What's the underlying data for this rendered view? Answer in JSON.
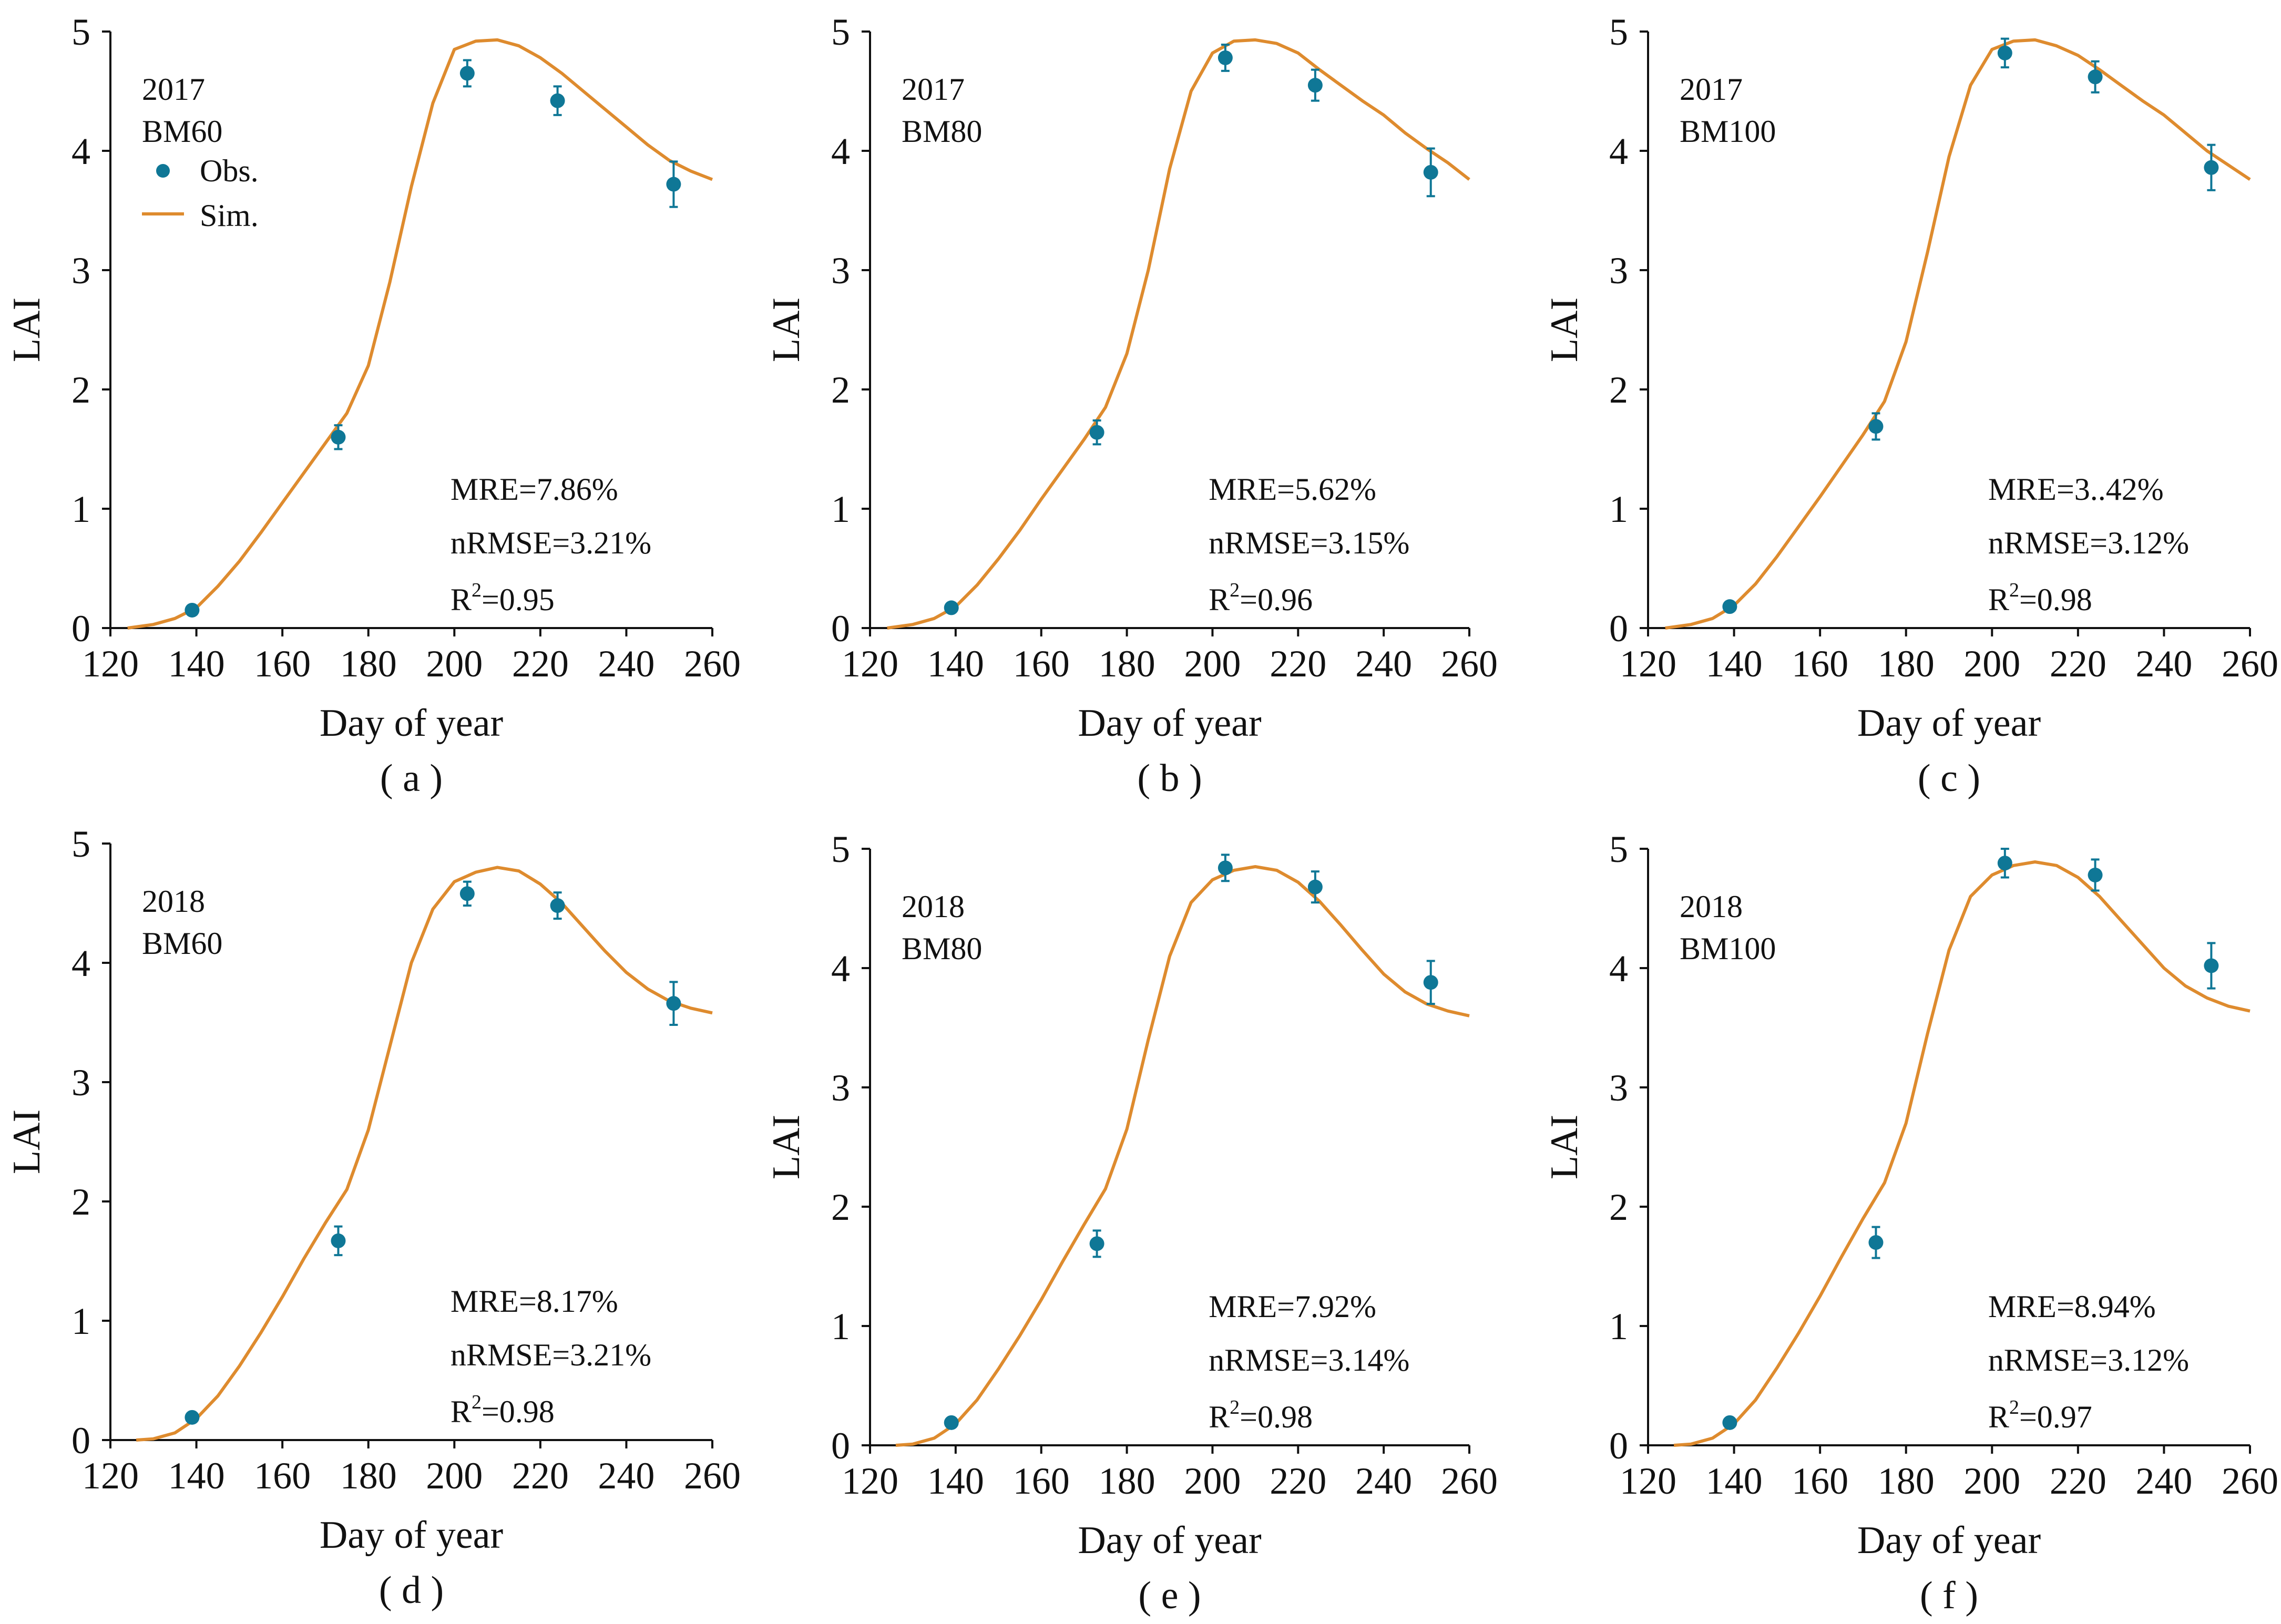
{
  "figure": {
    "panels": [
      {
        "id": "a",
        "caption": "( a )",
        "year_label": "2017",
        "treatment_label": "BM60",
        "mre": "MRE=7.86%",
        "nrmse": "nRMSE=3.21%",
        "r2_prefix": "R",
        "r2_sup": "2",
        "r2_value": "=0.95",
        "show_legend": true
      },
      {
        "id": "b",
        "caption": "( b )",
        "year_label": "2017",
        "treatment_label": "BM80",
        "mre": "MRE=5.62%",
        "nrmse": "nRMSE=3.15%",
        "r2_prefix": "R",
        "r2_sup": "2",
        "r2_value": "=0.96",
        "show_legend": false
      },
      {
        "id": "c",
        "caption": "( c )",
        "year_label": "2017",
        "treatment_label": "BM100",
        "mre": "MRE=3..42%",
        "nrmse": "nRMSE=3.12%",
        "r2_prefix": "R",
        "r2_sup": "2",
        "r2_value": "=0.98",
        "show_legend": false
      },
      {
        "id": "d",
        "caption": "( d )",
        "year_label": "2018",
        "treatment_label": "BM60",
        "mre": "MRE=8.17%",
        "nrmse": "nRMSE=3.21%",
        "r2_prefix": "R",
        "r2_sup": "2",
        "r2_value": "=0.98",
        "show_legend": false
      },
      {
        "id": "e",
        "caption": "( e )",
        "year_label": "2018",
        "treatment_label": "BM80",
        "mre": "MRE=7.92%",
        "nrmse": "nRMSE=3.14%",
        "r2_prefix": "R",
        "r2_sup": "2",
        "r2_value": "=0.98",
        "show_legend": false
      },
      {
        "id": "f",
        "caption": "( f )",
        "year_label": "2018",
        "treatment_label": "BM100",
        "mre": "MRE=8.94%",
        "nrmse": "nRMSE=3.12%",
        "r2_prefix": "R",
        "r2_sup": "2",
        "r2_value": "=0.97",
        "show_legend": false
      }
    ],
    "legend": {
      "obs_label": "Obs.",
      "sim_label": "Sim."
    },
    "colors": {
      "obs": "#0f7796",
      "sim": "#de8b2e",
      "axis": "#111111"
    }
  },
  "chart_data": [
    {
      "type": "scatter+line",
      "panel": "a",
      "title": "2017 BM60",
      "xlabel": "Day of year",
      "ylabel": "LAI",
      "xlim": [
        120,
        260
      ],
      "ylim": [
        0,
        5
      ],
      "xticks": [
        "120",
        "140",
        "160",
        "180",
        "200",
        "220",
        "240",
        "260"
      ],
      "yticks": [
        "0",
        "1",
        "2",
        "3",
        "4",
        "5"
      ],
      "series": [
        {
          "name": "Obs.",
          "x": [
            139,
            173,
            203,
            224,
            251
          ],
          "y": [
            0.15,
            1.6,
            4.65,
            4.42,
            3.72
          ],
          "err": [
            0.03,
            0.1,
            0.11,
            0.12,
            0.19
          ]
        },
        {
          "name": "Sim.",
          "x": [
            124,
            130,
            135,
            140,
            145,
            150,
            155,
            160,
            165,
            170,
            175,
            180,
            185,
            190,
            195,
            200,
            205,
            210,
            215,
            220,
            225,
            230,
            235,
            240,
            245,
            250,
            255,
            260
          ],
          "y": [
            0.0,
            0.03,
            0.08,
            0.17,
            0.35,
            0.56,
            0.8,
            1.05,
            1.3,
            1.55,
            1.8,
            2.2,
            2.9,
            3.7,
            4.4,
            4.85,
            4.92,
            4.93,
            4.88,
            4.78,
            4.65,
            4.5,
            4.35,
            4.2,
            4.05,
            3.92,
            3.83,
            3.76
          ]
        }
      ]
    },
    {
      "type": "scatter+line",
      "panel": "b",
      "title": "2017 BM80",
      "xlabel": "Day of year",
      "ylabel": "LAI",
      "xlim": [
        120,
        260
      ],
      "ylim": [
        0,
        5
      ],
      "xticks": [
        "120",
        "140",
        "160",
        "180",
        "200",
        "220",
        "240",
        "260"
      ],
      "yticks": [
        "0",
        "1",
        "2",
        "3",
        "4",
        "5"
      ],
      "series": [
        {
          "name": "Obs.",
          "x": [
            139,
            173,
            203,
            224,
            251
          ],
          "y": [
            0.17,
            1.64,
            4.78,
            4.55,
            3.82
          ],
          "err": [
            0.03,
            0.1,
            0.11,
            0.13,
            0.2
          ]
        },
        {
          "name": "Sim.",
          "x": [
            124,
            130,
            135,
            140,
            145,
            150,
            155,
            160,
            165,
            170,
            175,
            180,
            185,
            190,
            195,
            200,
            205,
            210,
            215,
            220,
            225,
            230,
            235,
            240,
            245,
            250,
            255,
            260
          ],
          "y": [
            0.0,
            0.03,
            0.08,
            0.18,
            0.36,
            0.58,
            0.82,
            1.08,
            1.33,
            1.58,
            1.85,
            2.3,
            3.0,
            3.85,
            4.5,
            4.82,
            4.92,
            4.93,
            4.9,
            4.82,
            4.68,
            4.55,
            4.42,
            4.3,
            4.15,
            4.02,
            3.9,
            3.76
          ]
        }
      ]
    },
    {
      "type": "scatter+line",
      "panel": "c",
      "title": "2017 BM100",
      "xlabel": "Day of year",
      "ylabel": "LAI",
      "xlim": [
        120,
        260
      ],
      "ylim": [
        0,
        5
      ],
      "xticks": [
        "120",
        "140",
        "160",
        "180",
        "200",
        "220",
        "240",
        "260"
      ],
      "yticks": [
        "0",
        "1",
        "2",
        "3",
        "4",
        "5"
      ],
      "series": [
        {
          "name": "Obs.",
          "x": [
            139,
            173,
            203,
            224,
            251
          ],
          "y": [
            0.18,
            1.69,
            4.82,
            4.62,
            3.86
          ],
          "err": [
            0.03,
            0.11,
            0.12,
            0.13,
            0.19
          ]
        },
        {
          "name": "Sim.",
          "x": [
            124,
            130,
            135,
            140,
            145,
            150,
            155,
            160,
            165,
            170,
            175,
            180,
            185,
            190,
            195,
            200,
            205,
            210,
            215,
            220,
            225,
            230,
            235,
            240,
            245,
            250,
            255,
            260
          ],
          "y": [
            0.0,
            0.03,
            0.08,
            0.19,
            0.37,
            0.6,
            0.85,
            1.1,
            1.36,
            1.62,
            1.9,
            2.4,
            3.15,
            3.95,
            4.55,
            4.85,
            4.92,
            4.93,
            4.88,
            4.8,
            4.68,
            4.55,
            4.42,
            4.3,
            4.15,
            4.0,
            3.88,
            3.76
          ]
        }
      ]
    },
    {
      "type": "scatter+line",
      "panel": "d",
      "title": "2018 BM60",
      "xlabel": "Day of year",
      "ylabel": "LAI",
      "xlim": [
        120,
        260
      ],
      "ylim": [
        0,
        5
      ],
      "xticks": [
        "120",
        "140",
        "160",
        "180",
        "200",
        "220",
        "240",
        "260"
      ],
      "yticks": [
        "0",
        "1",
        "2",
        "3",
        "4",
        "5"
      ],
      "series": [
        {
          "name": "Obs.",
          "x": [
            139,
            173,
            203,
            224,
            251
          ],
          "y": [
            0.19,
            1.67,
            4.58,
            4.48,
            3.66
          ],
          "err": [
            0.03,
            0.12,
            0.1,
            0.11,
            0.18
          ]
        },
        {
          "name": "Sim.",
          "x": [
            126,
            130,
            135,
            140,
            145,
            150,
            155,
            160,
            165,
            170,
            175,
            180,
            185,
            190,
            195,
            200,
            205,
            210,
            215,
            220,
            225,
            230,
            235,
            240,
            245,
            250,
            255,
            260
          ],
          "y": [
            0.0,
            0.01,
            0.06,
            0.18,
            0.37,
            0.62,
            0.9,
            1.2,
            1.52,
            1.82,
            2.1,
            2.6,
            3.3,
            4.0,
            4.45,
            4.68,
            4.76,
            4.8,
            4.77,
            4.66,
            4.5,
            4.3,
            4.1,
            3.92,
            3.78,
            3.68,
            3.62,
            3.58
          ]
        }
      ]
    },
    {
      "type": "scatter+line",
      "panel": "e",
      "title": "2018 BM80",
      "xlabel": "Day of year",
      "ylabel": "LAI",
      "xlim": [
        120,
        260
      ],
      "ylim": [
        0,
        5
      ],
      "xticks": [
        "120",
        "140",
        "160",
        "180",
        "200",
        "220",
        "240",
        "260"
      ],
      "yticks": [
        "0",
        "1",
        "2",
        "3",
        "4",
        "5"
      ],
      "series": [
        {
          "name": "Obs.",
          "x": [
            139,
            173,
            203,
            224,
            251
          ],
          "y": [
            0.19,
            1.69,
            4.84,
            4.68,
            3.88
          ],
          "err": [
            0.03,
            0.11,
            0.11,
            0.13,
            0.18
          ]
        },
        {
          "name": "Sim.",
          "x": [
            126,
            130,
            135,
            140,
            145,
            150,
            155,
            160,
            165,
            170,
            175,
            180,
            185,
            190,
            195,
            200,
            205,
            210,
            215,
            220,
            225,
            230,
            235,
            240,
            245,
            250,
            255,
            260
          ],
          "y": [
            0.0,
            0.01,
            0.06,
            0.18,
            0.38,
            0.64,
            0.92,
            1.22,
            1.54,
            1.85,
            2.15,
            2.65,
            3.4,
            4.1,
            4.55,
            4.74,
            4.82,
            4.85,
            4.82,
            4.72,
            4.56,
            4.36,
            4.15,
            3.95,
            3.8,
            3.7,
            3.64,
            3.6
          ]
        }
      ]
    },
    {
      "type": "scatter+line",
      "panel": "f",
      "title": "2018 BM100",
      "xlabel": "Day of year",
      "ylabel": "LAI",
      "xlim": [
        120,
        260
      ],
      "ylim": [
        0,
        5
      ],
      "xticks": [
        "120",
        "140",
        "160",
        "180",
        "200",
        "220",
        "240",
        "260"
      ],
      "yticks": [
        "0",
        "1",
        "2",
        "3",
        "4",
        "5"
      ],
      "series": [
        {
          "name": "Obs.",
          "x": [
            139,
            173,
            203,
            224,
            251
          ],
          "y": [
            0.19,
            1.7,
            4.88,
            4.78,
            4.02
          ],
          "err": [
            0.04,
            0.13,
            0.12,
            0.13,
            0.19
          ]
        },
        {
          "name": "Sim.",
          "x": [
            126,
            130,
            135,
            140,
            145,
            150,
            155,
            160,
            165,
            170,
            175,
            180,
            185,
            190,
            195,
            200,
            205,
            210,
            215,
            220,
            225,
            230,
            235,
            240,
            245,
            250,
            255,
            260
          ],
          "y": [
            0.0,
            0.01,
            0.06,
            0.18,
            0.38,
            0.65,
            0.94,
            1.25,
            1.58,
            1.9,
            2.2,
            2.7,
            3.45,
            4.15,
            4.6,
            4.78,
            4.86,
            4.89,
            4.86,
            4.76,
            4.6,
            4.4,
            4.2,
            4.0,
            3.85,
            3.75,
            3.68,
            3.64
          ]
        }
      ]
    }
  ]
}
